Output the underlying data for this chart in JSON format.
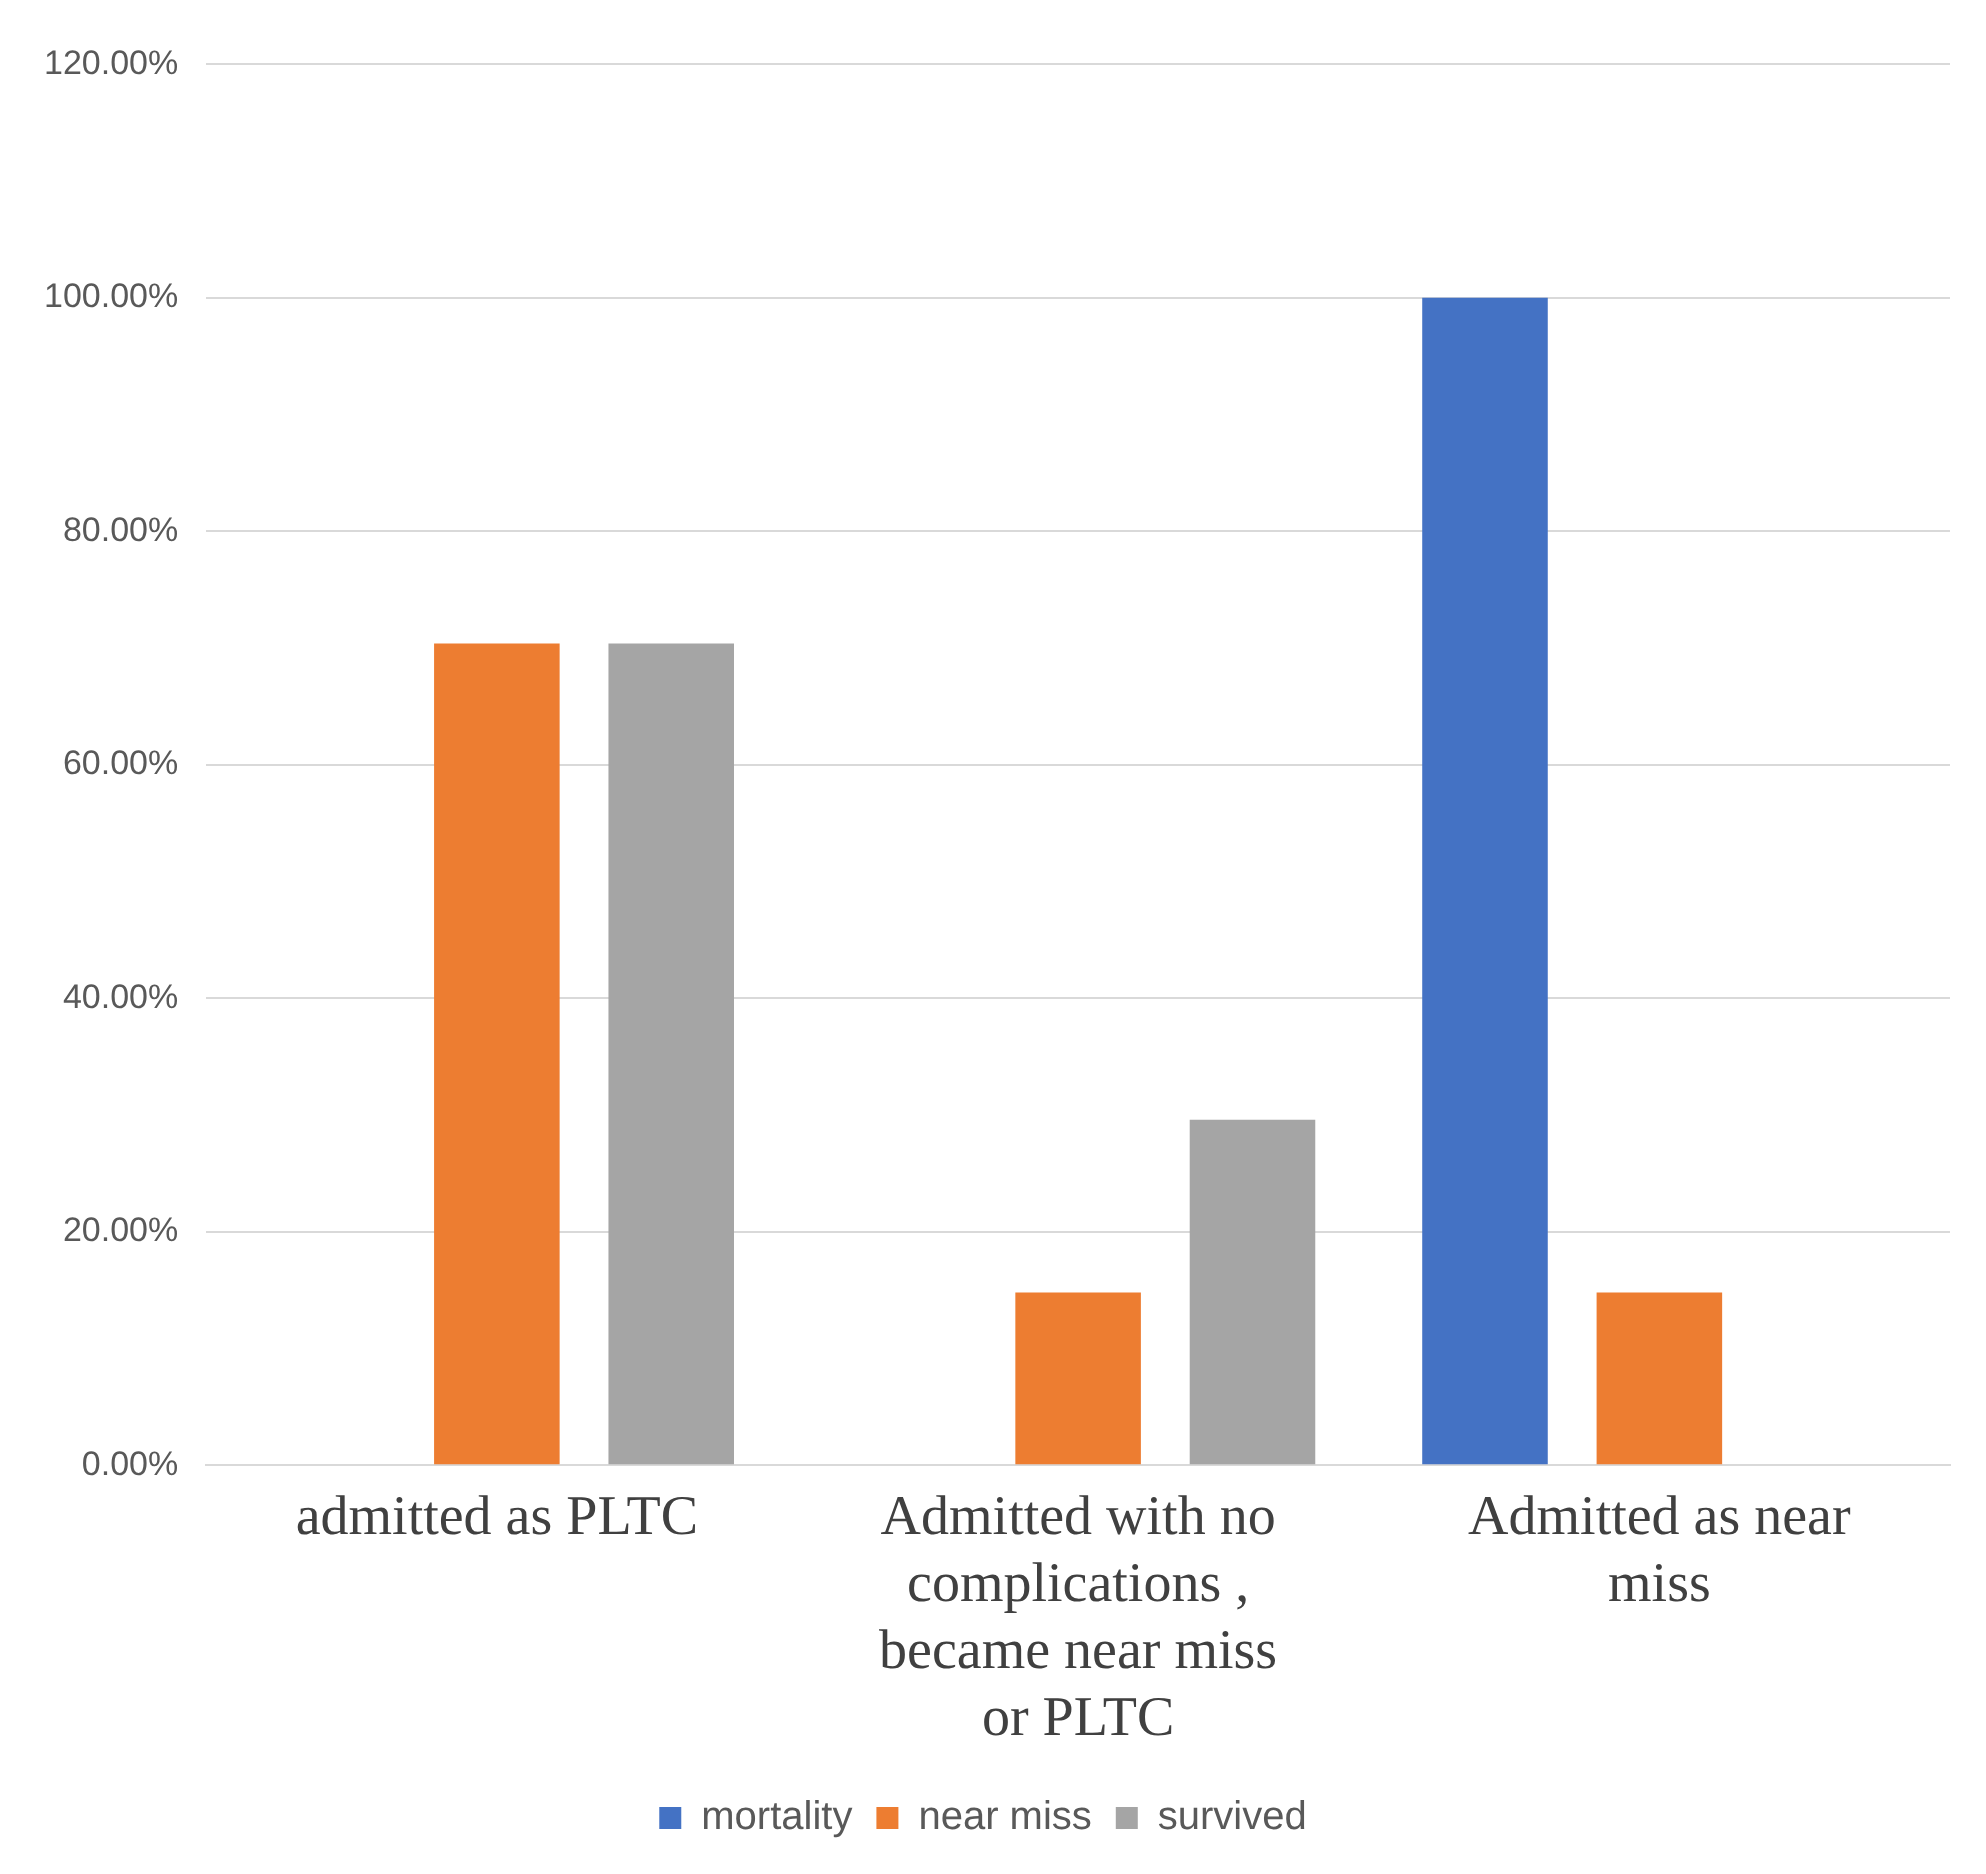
{
  "chart_data": {
    "type": "bar",
    "categories": [
      "admitted as PLTC",
      "Admitted with no complications , became near miss or PLTC",
      "Admitted as near miss"
    ],
    "series": [
      {
        "name": "mortality",
        "color": "#4472c4",
        "values": [
          0,
          0,
          100
        ]
      },
      {
        "name": "near miss",
        "color": "#ed7d31",
        "values": [
          70.4,
          14.8,
          14.8
        ]
      },
      {
        "name": "survived",
        "color": "#a5a5a5",
        "values": [
          70.4,
          29.6,
          0
        ]
      }
    ],
    "ylim": [
      0,
      120
    ],
    "yticks": [
      {
        "value": 0,
        "label": "0.00%"
      },
      {
        "value": 20,
        "label": "20.00%"
      },
      {
        "value": 40,
        "label": "40.00%"
      },
      {
        "value": 60,
        "label": "60.00%"
      },
      {
        "value": 80,
        "label": "80.00%"
      },
      {
        "value": 100,
        "label": "100.00%"
      },
      {
        "value": 120,
        "label": "120.00%"
      }
    ],
    "grid": "y",
    "legend": "bottom"
  }
}
